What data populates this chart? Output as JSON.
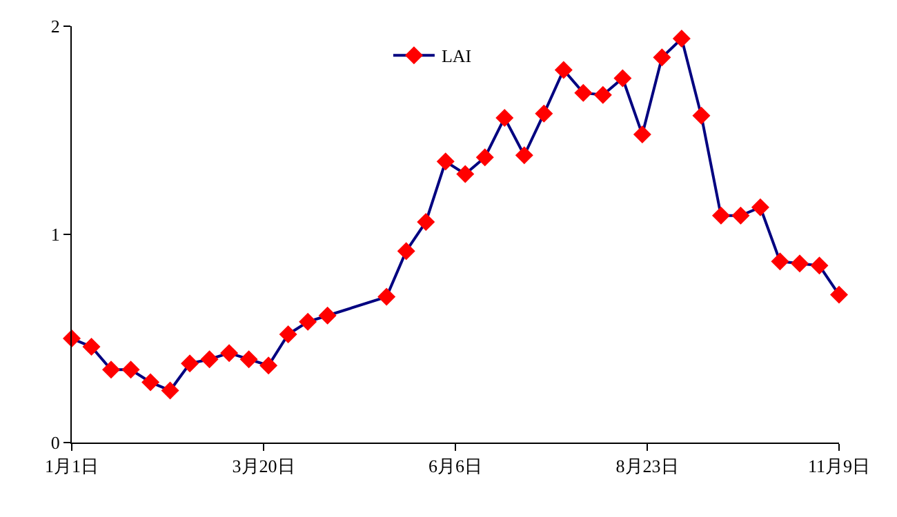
{
  "chart_data": {
    "type": "line",
    "x": [
      "--01-01",
      "--01-09",
      "--01-17",
      "--01-25",
      "--02-02",
      "--02-10",
      "--02-18",
      "--02-26",
      "--03-06",
      "--03-14",
      "--03-22",
      "--03-30",
      "--04-07",
      "--04-15",
      "--05-09",
      "--05-17",
      "--05-25",
      "--06-02",
      "--06-10",
      "--06-18",
      "--06-26",
      "--07-04",
      "--07-12",
      "--07-20",
      "--07-28",
      "--08-05",
      "--08-13",
      "--08-21",
      "--08-29",
      "--09-06",
      "--09-14",
      "--09-22",
      "--09-30",
      "--10-08",
      "--10-16",
      "--10-24",
      "--11-01",
      "--11-09"
    ],
    "series": [
      {
        "name": "LAI",
        "color": "#000080",
        "colors": [
          "#ff0000",
          "#ff0000",
          "#ff0000",
          "#ff0000",
          "#ff0000",
          "#ff0000",
          "#ff0000",
          "#ff0000",
          "#ff0000",
          "#ff0000",
          "#ff0000",
          "#ff0000",
          "#ff0000",
          "#ff0000",
          "#ff0000",
          "#ff0000",
          "#ff0000",
          "#ff0000",
          "#ff0000",
          "#ff0000",
          "#ff0000",
          "#ff0000",
          "#ff0000",
          "#ff0000",
          "#ff0000",
          "#ff0000",
          "#ff0000",
          "#ff0000",
          "#ff0000",
          "#ff0000",
          "#ff0000",
          "#ff0000",
          "#ff0000",
          "#ff0000",
          "#ff0000",
          "#ff0000",
          "#ff0000",
          "#ff0000"
        ],
        "values": [
          0.5,
          0.46,
          0.35,
          0.35,
          0.29,
          0.25,
          0.38,
          0.4,
          0.43,
          0.4,
          0.37,
          0.52,
          0.58,
          0.61,
          0.7,
          0.92,
          1.06,
          1.35,
          1.29,
          1.37,
          1.56,
          1.38,
          1.58,
          1.79,
          1.68,
          1.67,
          1.75,
          1.48,
          1.85,
          1.94,
          1.57,
          1.09,
          1.09,
          1.13,
          0.87,
          0.86,
          0.85,
          0.71
        ]
      }
    ],
    "xlim": [
      "--01-01",
      "--11-09"
    ],
    "xticks": [
      {
        "value": "--01-01",
        "label": "1月1日"
      },
      {
        "value": "--03-20",
        "label": "3月20日"
      },
      {
        "value": "--06-06",
        "label": "6月6日"
      },
      {
        "value": "--08-23",
        "label": "8月23日"
      },
      {
        "value": "--11-09",
        "label": "11月9日"
      }
    ],
    "ylim": [
      0,
      2
    ],
    "yticks": [
      0,
      1,
      2
    ],
    "marker": "diamond",
    "line_style": "solid",
    "legend": "top",
    "grid": false
  }
}
